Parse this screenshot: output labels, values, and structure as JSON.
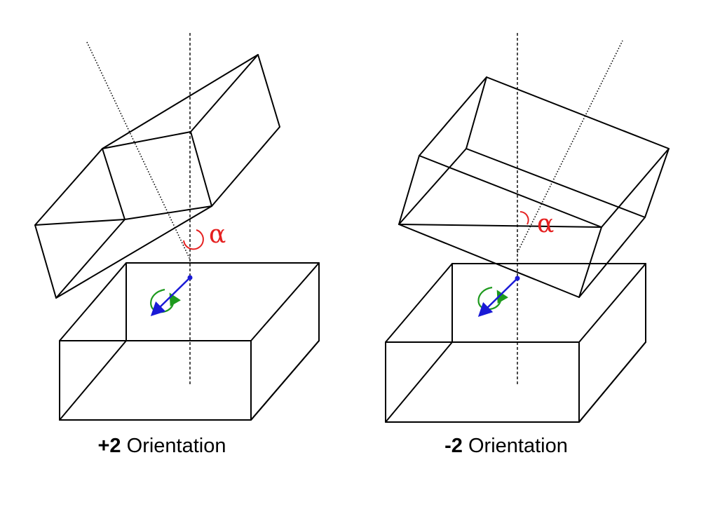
{
  "panels": [
    {
      "id": "plus",
      "caption_sign": "+2",
      "caption_word": "Orientation",
      "angle_symbol": "α"
    },
    {
      "id": "minus",
      "caption_sign": "-2",
      "caption_word": "Orientation",
      "angle_symbol": "α"
    }
  ],
  "colors": {
    "alpha": "#e52020",
    "rotation": "#1e9a1e",
    "vector": "#1a1ad6",
    "lines": "#000000"
  }
}
